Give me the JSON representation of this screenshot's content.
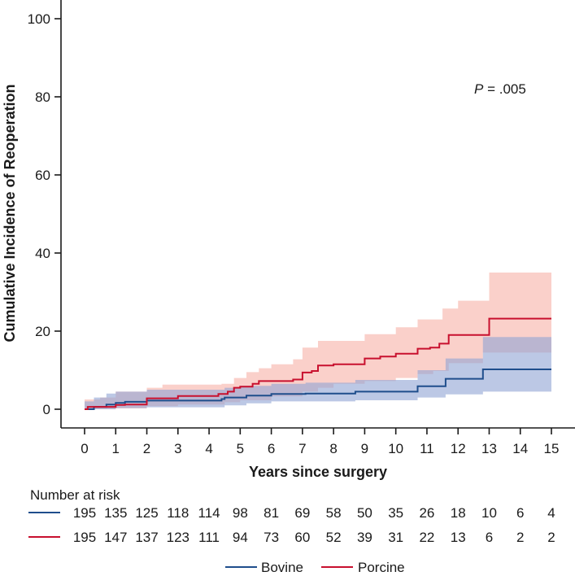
{
  "chart_data": {
    "type": "line",
    "subtype": "kaplan-meier cumulative incidence step",
    "xlabel": "Years since surgery",
    "ylabel": "Cumulative Incidence of Reoperation",
    "xlim": [
      0,
      15
    ],
    "ylim": [
      0,
      100
    ],
    "xticks": [
      "0",
      "1",
      "2",
      "3",
      "4",
      "5",
      "6",
      "7",
      "8",
      "9",
      "10",
      "11",
      "12",
      "13",
      "14",
      "15"
    ],
    "yticks": [
      "0",
      "20",
      "40",
      "60",
      "80",
      "100"
    ],
    "annotation": {
      "italic": "P",
      "rest": " = .005"
    },
    "series": [
      {
        "name": "Bovine",
        "color": "#1f4e8c",
        "band_color": "#8fa4d4",
        "steps": [
          [
            0,
            0
          ],
          [
            0.3,
            0.6
          ],
          [
            0.7,
            1.2
          ],
          [
            1.0,
            1.6
          ],
          [
            1.3,
            1.9
          ],
          [
            2.0,
            2.2
          ],
          [
            4.4,
            2.6
          ],
          [
            4.5,
            3.0
          ],
          [
            5.2,
            3.5
          ],
          [
            6.0,
            3.9
          ],
          [
            7.1,
            4.0
          ],
          [
            8.7,
            4.5
          ],
          [
            10.7,
            5.9
          ],
          [
            11.6,
            7.8
          ],
          [
            12.2,
            7.8
          ],
          [
            12.8,
            10.2
          ],
          [
            15,
            10.2
          ]
        ],
        "upper": [
          [
            0,
            2
          ],
          [
            0.3,
            3
          ],
          [
            0.7,
            4
          ],
          [
            1.0,
            4.5
          ],
          [
            2.0,
            5
          ],
          [
            4.0,
            5
          ],
          [
            4.5,
            5.5
          ],
          [
            5.0,
            6
          ],
          [
            6.0,
            6.5
          ],
          [
            7.1,
            6.8
          ],
          [
            8.7,
            7.5
          ],
          [
            10.7,
            10
          ],
          [
            11.6,
            13
          ],
          [
            12.8,
            18.5
          ],
          [
            15,
            18.5
          ]
        ],
        "lower": [
          [
            0,
            0
          ],
          [
            0.3,
            0
          ],
          [
            1.0,
            0.3
          ],
          [
            2.0,
            0.5
          ],
          [
            4.0,
            0.5
          ],
          [
            4.5,
            1.0
          ],
          [
            5.2,
            1.5
          ],
          [
            6.0,
            2.0
          ],
          [
            8.7,
            2.3
          ],
          [
            10.7,
            3.0
          ],
          [
            11.6,
            3.8
          ],
          [
            12.8,
            4.5
          ],
          [
            15,
            4.5
          ]
        ]
      },
      {
        "name": "Porcine",
        "color": "#c8102e",
        "band_color": "#f6b0a6",
        "steps": [
          [
            0,
            0
          ],
          [
            0.1,
            0.6
          ],
          [
            1.0,
            1.1
          ],
          [
            1.3,
            1.2
          ],
          [
            2.0,
            2.8
          ],
          [
            3.0,
            3.4
          ],
          [
            4.3,
            3.9
          ],
          [
            4.6,
            4.5
          ],
          [
            4.8,
            5.5
          ],
          [
            5.0,
            5.8
          ],
          [
            5.4,
            6.5
          ],
          [
            5.6,
            7.2
          ],
          [
            6.7,
            7.6
          ],
          [
            7.0,
            9.4
          ],
          [
            7.3,
            9.8
          ],
          [
            7.5,
            11.2
          ],
          [
            8.0,
            11.5
          ],
          [
            9.0,
            13.0
          ],
          [
            9.5,
            13.5
          ],
          [
            10.0,
            14.2
          ],
          [
            10.7,
            15.5
          ],
          [
            11.1,
            15.8
          ],
          [
            11.4,
            16.8
          ],
          [
            11.7,
            19.0
          ],
          [
            12.8,
            19.0
          ],
          [
            13.0,
            23.2
          ],
          [
            15,
            23.2
          ]
        ],
        "upper": [
          [
            0,
            2.5
          ],
          [
            0.5,
            3
          ],
          [
            1.0,
            4.5
          ],
          [
            2.0,
            5.5
          ],
          [
            2.5,
            6.3
          ],
          [
            4.4,
            6.5
          ],
          [
            4.8,
            8
          ],
          [
            5.2,
            9.5
          ],
          [
            5.6,
            10.5
          ],
          [
            6.0,
            11.5
          ],
          [
            6.7,
            12.8
          ],
          [
            7.0,
            15.8
          ],
          [
            7.5,
            17.5
          ],
          [
            9.0,
            19.2
          ],
          [
            10.0,
            21
          ],
          [
            10.7,
            23
          ],
          [
            11.5,
            25.8
          ],
          [
            12.0,
            27.8
          ],
          [
            13.0,
            35
          ],
          [
            15,
            35
          ]
        ],
        "lower": [
          [
            0,
            0
          ],
          [
            1.0,
            0.2
          ],
          [
            2.0,
            0.8
          ],
          [
            3.0,
            1.2
          ],
          [
            4.5,
            1.8
          ],
          [
            5.0,
            2.3
          ],
          [
            6.0,
            3.3
          ],
          [
            7.0,
            4.5
          ],
          [
            7.5,
            5.5
          ],
          [
            8.0,
            6.5
          ],
          [
            9.0,
            7.2
          ],
          [
            10.0,
            8.0
          ],
          [
            10.7,
            9.0
          ],
          [
            11.2,
            9.8
          ],
          [
            11.7,
            11.8
          ],
          [
            12.8,
            14.5
          ],
          [
            15,
            14.5
          ]
        ]
      }
    ],
    "risk_table": {
      "title": "Number at risk",
      "rows": [
        {
          "series": "Bovine",
          "values": [
            "195",
            "135",
            "125",
            "118",
            "114",
            "98",
            "81",
            "69",
            "58",
            "50",
            "35",
            "26",
            "18",
            "10",
            "6",
            "4"
          ]
        },
        {
          "series": "Porcine",
          "values": [
            "195",
            "147",
            "137",
            "123",
            "111",
            "94",
            "73",
            "60",
            "52",
            "39",
            "31",
            "22",
            "13",
            "6",
            "2",
            "2"
          ]
        }
      ]
    },
    "legend": [
      {
        "label": "Bovine",
        "color": "#1f4e8c"
      },
      {
        "label": "Porcine",
        "color": "#c8102e"
      }
    ]
  }
}
